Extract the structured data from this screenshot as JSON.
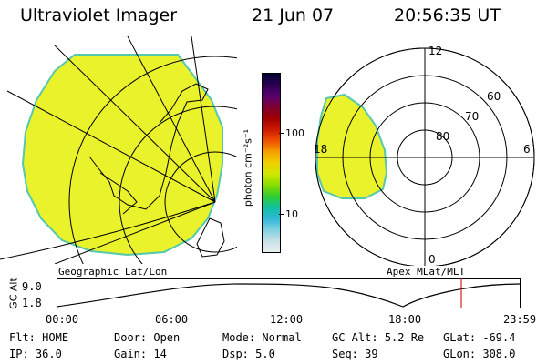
{
  "header": {
    "instrument": "Ultraviolet Imager",
    "date": "21 Jun 07",
    "time": "20:56:35 UT"
  },
  "colors": {
    "aurora_fill": "#e9f22a",
    "aurora_edge": "#55c8ae",
    "track": "#000000",
    "cursor": "#d62020"
  },
  "map": {
    "caption": "Geographic Lat/Lon"
  },
  "colorbar": {
    "unit": "photon cm⁻²s⁻¹",
    "ticks": [
      "100",
      "10"
    ],
    "colors": [
      "#000033",
      "#2a0050",
      "#5a0070",
      "#7e0030",
      "#a00000",
      "#cc1800",
      "#ee5000",
      "#f5a000",
      "#f0d000",
      "#d0e800",
      "#88dd00",
      "#30cc30",
      "#10c0a0",
      "#30b8d8",
      "#80d0e0",
      "#c8e0e8",
      "#e8eef0"
    ]
  },
  "polar": {
    "caption": "Apex MLat/MLT",
    "mlt_labels": [
      "12",
      "18",
      "6",
      "0"
    ],
    "lat_labels": [
      "60",
      "70",
      "80"
    ]
  },
  "altitude": {
    "axis_label": "GC Alt",
    "ticks": [
      "9.0",
      "1.8"
    ],
    "time_ticks": [
      "00:00",
      "06:00",
      "12:00",
      "18:00",
      "23:59"
    ]
  },
  "footer": {
    "row1": [
      {
        "label": "Flt:",
        "value": "HOME"
      },
      {
        "label": "Door:",
        "value": "Open"
      },
      {
        "label": "Mode:",
        "value": "Normal"
      },
      {
        "label": "GC Alt:",
        "value": "5.2 Re"
      },
      {
        "label": "GLat:",
        "value": "-69.4"
      }
    ],
    "row2": [
      {
        "label": "IP:",
        "value": "36.0"
      },
      {
        "label": "Gain:",
        "value": "14"
      },
      {
        "label": "Dsp:",
        "value": "5.0"
      },
      {
        "label": "Seq:",
        "value": "39"
      },
      {
        "label": "GLon:",
        "value": "308.0"
      }
    ]
  }
}
